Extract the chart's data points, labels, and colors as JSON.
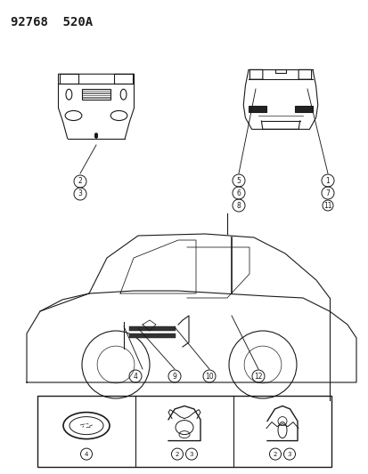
{
  "title": "92768  520A",
  "title_fontsize": 10,
  "bg_color": "#ffffff",
  "line_color": "#1a1a1a",
  "figure_width": 4.14,
  "figure_height": 5.33,
  "dpi": 100
}
